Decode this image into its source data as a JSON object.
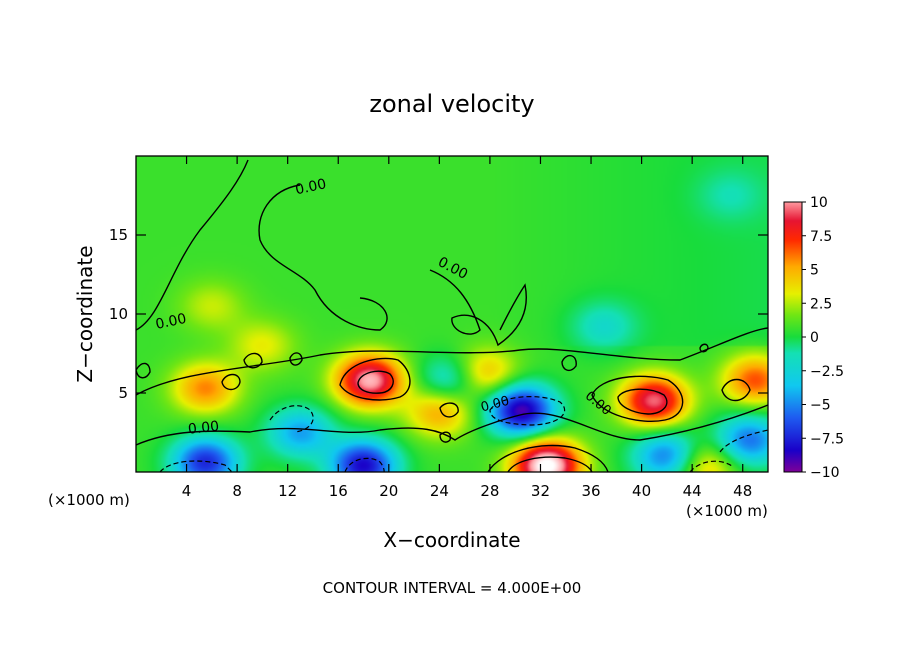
{
  "chart_data": {
    "type": "heatmap",
    "title": "zonal velocity",
    "xlabel": "X−coordinate",
    "ylabel": "Z−coordinate",
    "x_unit_left": "(×1000 m)",
    "x_unit_right": "(×1000 m)",
    "xlim": [
      0,
      50
    ],
    "ylim": [
      0,
      20
    ],
    "x_ticks": [
      "4",
      "8",
      "12",
      "16",
      "20",
      "24",
      "28",
      "32",
      "36",
      "40",
      "44",
      "48"
    ],
    "y_ticks": [
      "5",
      "10",
      "15"
    ],
    "colorbar": {
      "range": [
        -10,
        10
      ],
      "ticks": [
        "10",
        "7.5",
        "5",
        "2.5",
        "0",
        "−2.5",
        "−5",
        "−7.5",
        "−10"
      ]
    },
    "contour_labels": [
      "0.00",
      "0.00",
      "0.00",
      "0.00",
      "0.00",
      "0.00"
    ],
    "contour_interval_text": "CONTOUR INTERVAL = 4.000E+00",
    "features": [
      {
        "x": 18.5,
        "z": 5.8,
        "value": 10
      },
      {
        "x": 41.0,
        "z": 4.5,
        "value": 9
      },
      {
        "x": 32.5,
        "z": 0.4,
        "value": 12
      },
      {
        "x": 49.0,
        "z": 5.8,
        "value": 6
      },
      {
        "x": 5.5,
        "z": 5.3,
        "value": 5
      },
      {
        "x": 24.0,
        "z": 3.8,
        "value": 4.5
      },
      {
        "x": 27.5,
        "z": 6.2,
        "value": 4.5
      },
      {
        "x": 45.0,
        "z": 0.4,
        "value": 4
      },
      {
        "x": 30.5,
        "z": 3.9,
        "value": -10
      },
      {
        "x": 18.0,
        "z": 0.4,
        "value": -9
      },
      {
        "x": 5.5,
        "z": 0.6,
        "value": -8
      },
      {
        "x": 48.5,
        "z": 2.0,
        "value": -6
      },
      {
        "x": 42.0,
        "z": 1.0,
        "value": -6
      },
      {
        "x": 13.0,
        "z": 2.5,
        "value": -5
      },
      {
        "x": 37.0,
        "z": 9.2,
        "value": -2.5
      },
      {
        "x": 25.0,
        "z": 5.8,
        "value": -4
      },
      {
        "x": 10.0,
        "z": 8.0,
        "value": 2.5
      },
      {
        "x": 6.0,
        "z": 10.5,
        "value": 2.0
      },
      {
        "x": 47.0,
        "z": 17.5,
        "value": -1.5
      }
    ]
  }
}
